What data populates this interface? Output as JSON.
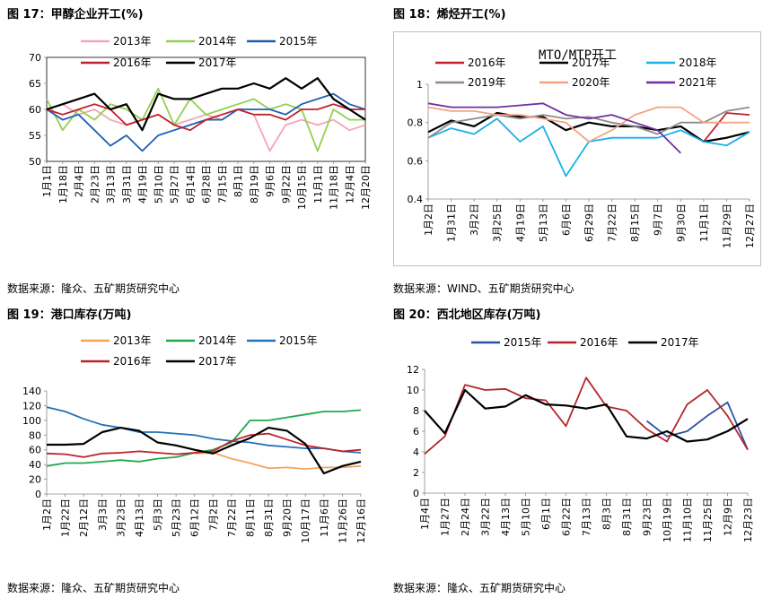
{
  "panels": [
    {
      "title": "图 17：甲醇企业开工(%)",
      "source": "数据来源：隆众、五矿期货研究中心"
    },
    {
      "title": "图 18：烯烃开工(%)",
      "source": "数据来源：WIND、五矿期货研究中心"
    },
    {
      "title": "图 19：港口库存(万吨)",
      "source": "数据来源：隆众、五矿期货研究中心"
    },
    {
      "title": "图 20：西北地区库存(万吨)",
      "source": "数据来源：隆众、五矿期货研究中心"
    }
  ],
  "chart_data": [
    {
      "type": "line",
      "title": "",
      "ylim": [
        50,
        70
      ],
      "yticks": [
        50,
        55,
        60,
        65,
        70
      ],
      "x_ticks": [
        "1月1日",
        "1月18日",
        "2月4日",
        "2月23日",
        "3月13日",
        "3月31日",
        "4月19日",
        "5月10日",
        "5月27日",
        "6月14日",
        "6月28日",
        "7月15日",
        "8月1日",
        "8月19日",
        "9月6日",
        "9月22日",
        "10月15日",
        "11月1日",
        "11月18日",
        "12月4日",
        "12月20日"
      ],
      "legend": "top",
      "series": [
        {
          "name": "2013年",
          "color": "#f4a6b5",
          "values": [
            60,
            61,
            59,
            60,
            58,
            57,
            58,
            59,
            57,
            58,
            59,
            58,
            60,
            59,
            52,
            57,
            58,
            57,
            58,
            56,
            57
          ]
        },
        {
          "name": "2014年",
          "color": "#92d050",
          "values": [
            62,
            56,
            60,
            58,
            61,
            60,
            58,
            64,
            57,
            62,
            59,
            60,
            61,
            62,
            60,
            61,
            60,
            52,
            60,
            58,
            58
          ]
        },
        {
          "name": "2015年",
          "color": "#1f5fb4",
          "values": [
            60,
            58,
            59,
            56,
            53,
            55,
            52,
            55,
            56,
            57,
            58,
            58,
            60,
            60,
            60,
            59,
            61,
            62,
            63,
            61,
            60
          ]
        },
        {
          "name": "2016年",
          "color": "#c0202b",
          "values": [
            60,
            59,
            60,
            61,
            60,
            57,
            58,
            59,
            57,
            56,
            58,
            59,
            60,
            59,
            59,
            58,
            60,
            60,
            61,
            60,
            60
          ]
        },
        {
          "name": "2017年",
          "color": "#000000",
          "values": [
            60,
            61,
            62,
            63,
            60,
            61,
            56,
            63,
            62,
            62,
            63,
            64,
            64,
            65,
            64,
            66,
            64,
            66,
            62,
            60,
            58
          ]
        }
      ]
    },
    {
      "type": "line",
      "title": "MTO/MTP开工",
      "ylim": [
        0.4,
        1
      ],
      "yticks": [
        0.4,
        0.6,
        0.8,
        1
      ],
      "x_ticks": [
        "1月2日",
        "1月31日",
        "3月2日",
        "3月25日",
        "4月19日",
        "5月13日",
        "6月6日",
        "6月29日",
        "7月22日",
        "8月15日",
        "9月7日",
        "9月30日",
        "11月1日",
        "11月29日",
        "12月27日"
      ],
      "legend": "top",
      "series": [
        {
          "name": "2016年",
          "color": "#c0202b",
          "values": [
            null,
            null,
            null,
            null,
            null,
            null,
            null,
            null,
            null,
            null,
            null,
            null,
            0.7,
            0.85,
            0.84
          ]
        },
        {
          "name": "2017年",
          "color": "#000000",
          "values": [
            0.75,
            0.81,
            0.78,
            0.85,
            0.83,
            0.83,
            0.76,
            0.8,
            0.78,
            0.78,
            0.76,
            0.78,
            0.7,
            0.72,
            0.75
          ]
        },
        {
          "name": "2018年",
          "color": "#1ab0e8",
          "values": [
            0.72,
            0.77,
            0.74,
            0.82,
            0.7,
            0.78,
            0.52,
            0.7,
            0.72,
            0.72,
            0.72,
            0.76,
            0.7,
            0.68,
            0.75
          ]
        },
        {
          "name": "2019年",
          "color": "#8c8c8c",
          "values": [
            0.72,
            0.8,
            0.82,
            0.84,
            0.82,
            0.84,
            0.82,
            0.83,
            0.8,
            0.78,
            0.74,
            0.8,
            0.8,
            0.86,
            0.88
          ]
        },
        {
          "name": "2020年",
          "color": "#f4a384",
          "values": [
            0.88,
            0.86,
            0.86,
            0.84,
            0.84,
            0.82,
            0.8,
            0.7,
            0.76,
            0.84,
            0.88,
            0.88,
            0.8,
            0.8,
            0.8
          ]
        },
        {
          "name": "2021年",
          "color": "#7030a0",
          "values": [
            0.9,
            0.88,
            0.88,
            0.88,
            0.89,
            0.9,
            0.84,
            0.82,
            0.84,
            0.8,
            0.76,
            0.64,
            null,
            null,
            null
          ]
        }
      ]
    },
    {
      "type": "line",
      "title": "",
      "ylim": [
        0,
        140
      ],
      "yticks": [
        0,
        20,
        40,
        60,
        80,
        100,
        120,
        140
      ],
      "x_ticks": [
        "1月2日",
        "1月22日",
        "2月12日",
        "3月3日",
        "3月23日",
        "4月13日",
        "5月3日",
        "5月23日",
        "6月12日",
        "7月2日",
        "7月22日",
        "8月11日",
        "8月31日",
        "9月20日",
        "10月17日",
        "11月6日",
        "11月26日",
        "12月16日"
      ],
      "legend": "top",
      "series": [
        {
          "name": "2013年",
          "color": "#f4a55c",
          "values": [
            null,
            null,
            null,
            null,
            null,
            null,
            null,
            null,
            55,
            56,
            48,
            42,
            35,
            36,
            34,
            36,
            36,
            38
          ]
        },
        {
          "name": "2014年",
          "color": "#21a84b",
          "values": [
            38,
            42,
            42,
            44,
            46,
            44,
            48,
            50,
            56,
            60,
            70,
            100,
            100,
            104,
            108,
            112,
            112,
            114
          ]
        },
        {
          "name": "2015年",
          "color": "#2470b8",
          "values": [
            118,
            112,
            102,
            94,
            90,
            84,
            84,
            82,
            80,
            75,
            72,
            70,
            66,
            64,
            62,
            62,
            58,
            56
          ]
        },
        {
          "name": "2016年",
          "color": "#c0202b",
          "values": [
            55,
            54,
            50,
            55,
            56,
            58,
            56,
            54,
            56,
            58,
            72,
            80,
            82,
            74,
            66,
            62,
            58,
            60
          ]
        },
        {
          "name": "2017年",
          "color": "#000000",
          "values": [
            67,
            67,
            68,
            84,
            90,
            86,
            70,
            66,
            60,
            55,
            66,
            76,
            90,
            86,
            68,
            28,
            38,
            44
          ]
        }
      ]
    },
    {
      "type": "line",
      "title": "",
      "ylim": [
        0,
        12
      ],
      "yticks": [
        0,
        2,
        4,
        6,
        8,
        10,
        12
      ],
      "x_ticks": [
        "1月4日",
        "1月27日",
        "2月24日",
        "3月22日",
        "4月13日",
        "5月10日",
        "6月1日",
        "6月22日",
        "7月13日",
        "8月3日",
        "8月31日",
        "9月23日",
        "10月19日",
        "11月10日",
        "11月25日",
        "12月9日",
        "12月23日"
      ],
      "legend": "top",
      "series": [
        {
          "name": "2015年",
          "color": "#2d4fa0",
          "values": [
            null,
            null,
            null,
            null,
            null,
            null,
            null,
            null,
            null,
            null,
            null,
            7,
            5.5,
            6,
            7.5,
            8.8,
            4.2
          ]
        },
        {
          "name": "2016年",
          "color": "#b5262b",
          "values": [
            3.8,
            5.5,
            10.5,
            10,
            10.1,
            9.2,
            9,
            6.5,
            11.2,
            8.4,
            8,
            6.2,
            5,
            8.6,
            10,
            7.5,
            4.2
          ]
        },
        {
          "name": "2017年",
          "color": "#000000",
          "values": [
            8,
            5.8,
            10,
            8.2,
            8.4,
            9.5,
            8.6,
            8.5,
            8.2,
            8.6,
            5.5,
            5.3,
            6,
            5,
            5.2,
            6,
            7.2
          ]
        }
      ]
    }
  ]
}
